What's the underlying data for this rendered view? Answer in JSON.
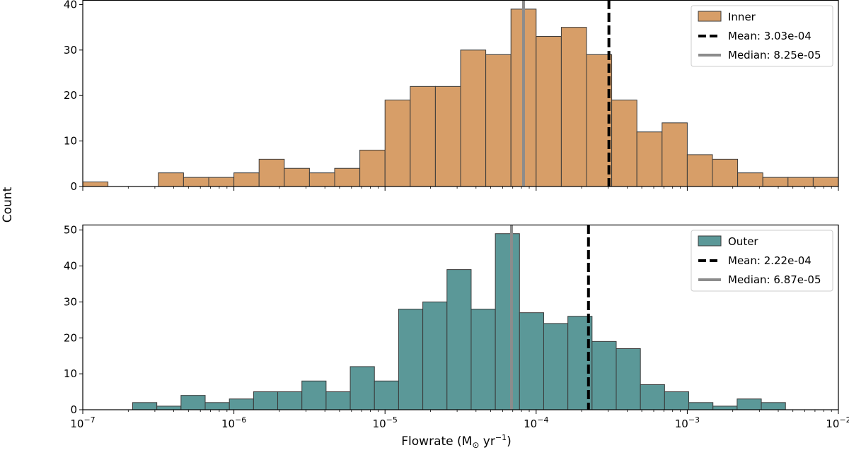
{
  "figure": {
    "ylabel": "Count",
    "xlabel_main": "Flowrate (M",
    "xlabel_sub": "⊙",
    "xlabel_mid": " yr",
    "xlabel_sup": "−1",
    "xlabel_end": ")",
    "x_ticks": [
      {
        "base": "10",
        "exp": "−7",
        "value": 1e-07
      },
      {
        "base": "10",
        "exp": "−6",
        "value": 1e-06
      },
      {
        "base": "10",
        "exp": "−5",
        "value": 1e-05
      },
      {
        "base": "10",
        "exp": "−4",
        "value": 0.0001
      },
      {
        "base": "10",
        "exp": "−3",
        "value": 0.001
      },
      {
        "base": "10",
        "exp": "−2",
        "value": 0.01
      }
    ]
  },
  "chart_data": [
    {
      "type": "bar",
      "name": "inner-histogram",
      "xscale": "log",
      "xlim": [
        1e-07,
        0.01
      ],
      "ylim": [
        0,
        41
      ],
      "yticks": [
        0,
        10,
        20,
        30,
        40
      ],
      "bin_start_log10": -7.0,
      "bin_width_log10": 0.166667,
      "counts": [
        1,
        0,
        0,
        3,
        2,
        2,
        3,
        6,
        4,
        3,
        4,
        8,
        19,
        22,
        22,
        30,
        29,
        39,
        33,
        35,
        29,
        19,
        12,
        14,
        7,
        6,
        3,
        2,
        2,
        2
      ],
      "bar_color": "#d79e68",
      "mean": 0.000303,
      "median": 8.25e-05,
      "legend": {
        "position": "top-right",
        "series_label": "Inner",
        "mean_label": "Mean: 3.03e-04",
        "median_label": "Median: 8.25e-05"
      }
    },
    {
      "type": "bar",
      "name": "outer-histogram",
      "xscale": "log",
      "xlim": [
        1e-07,
        0.01
      ],
      "ylim": [
        0,
        51.5
      ],
      "yticks": [
        0,
        10,
        20,
        30,
        40,
        50
      ],
      "bin_start_log10": -6.67,
      "bin_width_log10": 0.16,
      "counts": [
        2,
        1,
        4,
        2,
        3,
        5,
        5,
        8,
        5,
        12,
        8,
        28,
        30,
        39,
        28,
        49,
        27,
        24,
        26,
        19,
        17,
        7,
        5,
        2,
        1,
        3,
        2
      ],
      "bar_color": "#5b9898",
      "mean": 0.000222,
      "median": 6.87e-05,
      "legend": {
        "position": "top-right",
        "series_label": "Outer",
        "mean_label": "Mean: 2.22e-04",
        "median_label": "Median: 6.87e-05"
      }
    }
  ]
}
